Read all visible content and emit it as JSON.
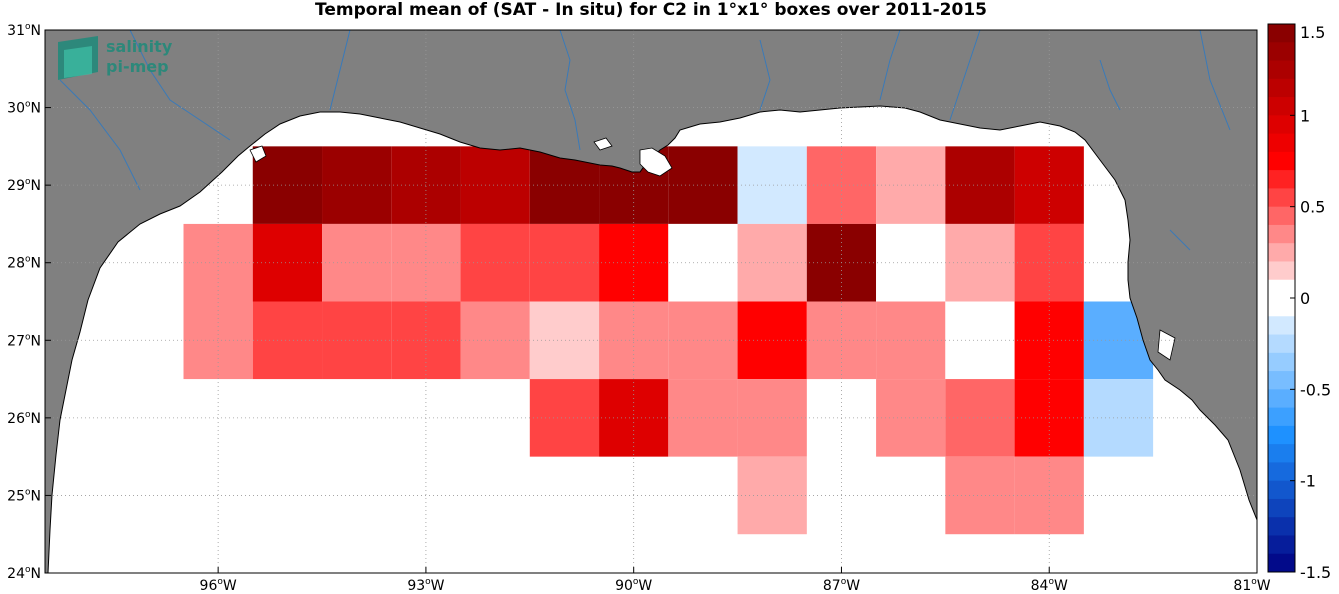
{
  "title": "Temporal mean of (SAT - In situ) for C2 in 1°x1° boxes over 2011-2015",
  "logo": {
    "line1": "salinity",
    "line2": "pi-mep",
    "color": "#1f8a7a"
  },
  "map": {
    "lon_range": [
      -98.5,
      -81
    ],
    "lat_range": [
      24,
      31
    ],
    "land_color": "#808080",
    "ocean_color": "#ffffff",
    "river_color": "#3a7ab8",
    "grid": "dotted",
    "lon_ticks": [
      {
        "value": -96,
        "label": "96",
        "suffix": "W"
      },
      {
        "value": -93,
        "label": "93",
        "suffix": "W"
      },
      {
        "value": -90,
        "label": "90",
        "suffix": "W"
      },
      {
        "value": -87,
        "label": "87",
        "suffix": "W"
      },
      {
        "value": -84,
        "label": "84",
        "suffix": "W"
      },
      {
        "value": -81,
        "label": "81",
        "suffix": "W"
      }
    ],
    "lat_ticks": [
      {
        "value": 24,
        "label": "24",
        "suffix": "N"
      },
      {
        "value": 25,
        "label": "25",
        "suffix": "N"
      },
      {
        "value": 26,
        "label": "26",
        "suffix": "N"
      },
      {
        "value": 27,
        "label": "27",
        "suffix": "N"
      },
      {
        "value": 28,
        "label": "28",
        "suffix": "N"
      },
      {
        "value": 29,
        "label": "29",
        "suffix": "N"
      },
      {
        "value": 30,
        "label": "30",
        "suffix": "N"
      },
      {
        "value": 31,
        "label": "31",
        "suffix": "N"
      }
    ]
  },
  "chart_data": {
    "type": "heatmap",
    "cell_size_deg": 1,
    "cells": [
      {
        "lon": -95,
        "lat": 29,
        "value": 1.45
      },
      {
        "lon": -94,
        "lat": 29,
        "value": 1.35
      },
      {
        "lon": -93,
        "lat": 29,
        "value": 1.25
      },
      {
        "lon": -92,
        "lat": 29,
        "value": 1.15
      },
      {
        "lon": -91,
        "lat": 29,
        "value": 1.45
      },
      {
        "lon": -90,
        "lat": 29,
        "value": 1.45
      },
      {
        "lon": -89,
        "lat": 29,
        "value": 1.45
      },
      {
        "lon": -88,
        "lat": 29,
        "value": -0.15
      },
      {
        "lon": -87,
        "lat": 29,
        "value": 0.45
      },
      {
        "lon": -86,
        "lat": 29,
        "value": 0.2
      },
      {
        "lon": -85,
        "lat": 29,
        "value": 1.2
      },
      {
        "lon": -84,
        "lat": 29,
        "value": 1.05
      },
      {
        "lon": -96,
        "lat": 28,
        "value": 0.35
      },
      {
        "lon": -95,
        "lat": 28,
        "value": 0.95
      },
      {
        "lon": -94,
        "lat": 28,
        "value": 0.4
      },
      {
        "lon": -93,
        "lat": 28,
        "value": 0.4
      },
      {
        "lon": -92,
        "lat": 28,
        "value": 0.55
      },
      {
        "lon": -91,
        "lat": 28,
        "value": 0.55
      },
      {
        "lon": -90,
        "lat": 28,
        "value": 0.7
      },
      {
        "lon": -89,
        "lat": 28,
        "value": 0.0
      },
      {
        "lon": -88,
        "lat": 28,
        "value": 0.2
      },
      {
        "lon": -87,
        "lat": 28,
        "value": 1.45
      },
      {
        "lon": -86,
        "lat": 28,
        "value": 0.0
      },
      {
        "lon": -85,
        "lat": 28,
        "value": 0.2
      },
      {
        "lon": -84,
        "lat": 28,
        "value": 0.55
      },
      {
        "lon": -96,
        "lat": 27,
        "value": 0.35
      },
      {
        "lon": -95,
        "lat": 27,
        "value": 0.55
      },
      {
        "lon": -94,
        "lat": 27,
        "value": 0.55
      },
      {
        "lon": -93,
        "lat": 27,
        "value": 0.55
      },
      {
        "lon": -92,
        "lat": 27,
        "value": 0.4
      },
      {
        "lon": -91,
        "lat": 27,
        "value": 0.15
      },
      {
        "lon": -90,
        "lat": 27,
        "value": 0.3
      },
      {
        "lon": -89,
        "lat": 27,
        "value": 0.3
      },
      {
        "lon": -88,
        "lat": 27,
        "value": 0.7
      },
      {
        "lon": -87,
        "lat": 27,
        "value": 0.3
      },
      {
        "lon": -86,
        "lat": 27,
        "value": 0.3
      },
      {
        "lon": -85,
        "lat": 27,
        "value": 0.0
      },
      {
        "lon": -84,
        "lat": 27,
        "value": 0.7
      },
      {
        "lon": -83,
        "lat": 27,
        "value": -0.6
      },
      {
        "lon": -91,
        "lat": 26,
        "value": 0.55
      },
      {
        "lon": -90,
        "lat": 26,
        "value": 0.95
      },
      {
        "lon": -89,
        "lat": 26,
        "value": 0.4
      },
      {
        "lon": -88,
        "lat": 26,
        "value": 0.4
      },
      {
        "lon": -86,
        "lat": 26,
        "value": 0.3
      },
      {
        "lon": -85,
        "lat": 26,
        "value": 0.45
      },
      {
        "lon": -84,
        "lat": 26,
        "value": 0.7
      },
      {
        "lon": -83,
        "lat": 26,
        "value": -0.25
      },
      {
        "lon": -88,
        "lat": 25,
        "value": 0.2
      },
      {
        "lon": -85,
        "lat": 25,
        "value": 0.3
      },
      {
        "lon": -84,
        "lat": 25,
        "value": 0.3
      }
    ],
    "colorbar": {
      "min": -1.5,
      "max": 1.5,
      "step": 0.1,
      "ticks": [
        {
          "value": 1.5,
          "label": "1.5"
        },
        {
          "value": 1,
          "label": "1"
        },
        {
          "value": 0.5,
          "label": "0.5"
        },
        {
          "value": 0,
          "label": "0"
        },
        {
          "value": -0.5,
          "label": "-0.5"
        },
        {
          "value": -1,
          "label": "-1"
        },
        {
          "value": -1.5,
          "label": "-1.5"
        }
      ]
    }
  }
}
